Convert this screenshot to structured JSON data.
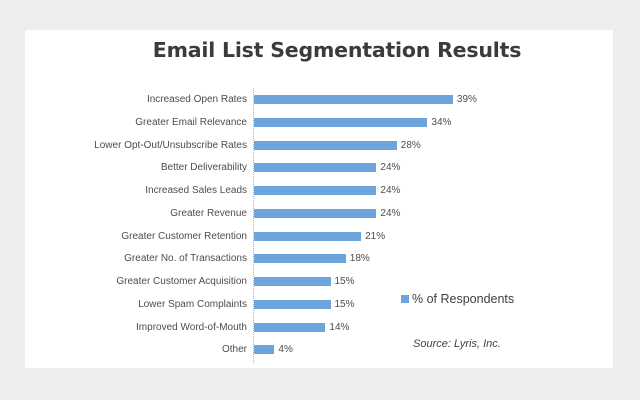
{
  "chart_data": {
    "type": "bar",
    "orientation": "horizontal",
    "title": "Email List Segmentation Results",
    "xlabel": "",
    "ylabel": "",
    "categories": [
      "Increased Open Rates",
      "Greater Email Relevance",
      "Lower Opt-Out/Unsubscribe Rates",
      "Better Deliverability",
      "Increased Sales Leads",
      "Greater Revenue",
      "Greater Customer Retention",
      "Greater No. of Transactions",
      "Greater Customer Acquisition",
      "Lower Spam Complaints",
      "Improved Word-of-Mouth",
      "Other"
    ],
    "series": [
      {
        "name": "% of Respondents",
        "values": [
          39,
          34,
          28,
          24,
          24,
          24,
          21,
          18,
          15,
          15,
          14,
          4
        ],
        "labels": [
          "39%",
          "34%",
          "28%",
          "24%",
          "24%",
          "24%",
          "21%",
          "18%",
          "15%",
          "15%",
          "14%",
          "4%"
        ],
        "color": "#6ea4dc"
      }
    ],
    "legend": {
      "entries": [
        "% of Respondents"
      ],
      "position": "right-lower"
    },
    "annotations": [
      "Source: Lyris, Inc."
    ],
    "grid": false,
    "xlim": [
      0,
      40
    ]
  },
  "title": "Email List Segmentation Results",
  "legend_label": "% of Respondents",
  "source": "Source: Lyris, Inc.",
  "colors": {
    "bar": "#6ea4dc",
    "background": "#eeeced",
    "panel": "#ffffff"
  }
}
